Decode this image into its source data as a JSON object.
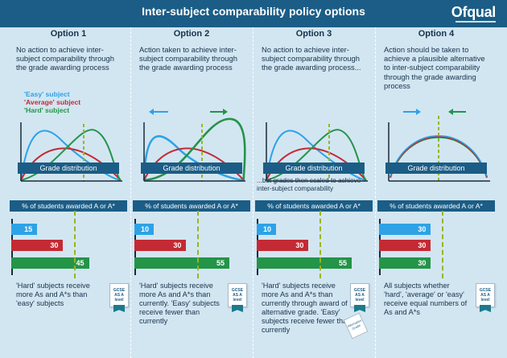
{
  "title": "Inter-subject comparability policy options",
  "logo": "Ofqual",
  "colors": {
    "easy": "#2ea2e6",
    "average": "#c42a33",
    "hard": "#239448",
    "threshold": "#9ab51f",
    "header": "#1b5d86"
  },
  "legend": {
    "easy": "'Easy' subject",
    "average": "'Average' subject",
    "hard": "'Hard' subject"
  },
  "options": [
    {
      "title": "Option 1",
      "desc": "No action to achieve inter-subject comparability through the grade awarding process",
      "dist_label": "Grade distribution",
      "pct_label": "% of students awarded A or A*",
      "bars": {
        "easy": 15,
        "average": 30,
        "hard": 45
      },
      "note": "'Hard' subjects receive more As and A*s than 'easy' subjects",
      "cert": "GCSE AS A level"
    },
    {
      "title": "Option 2",
      "desc": "Action taken to achieve inter-subject comparability through the grade awarding process",
      "dist_label": "Grade distribution",
      "pct_label": "% of students awarded A or A*",
      "bars": {
        "easy": 10,
        "average": 30,
        "hard": 55
      },
      "note": "'Hard' subjects receive more As and A*s than currently. 'Easy' subjects receive fewer than currently",
      "cert": "GCSE AS A level"
    },
    {
      "title": "Option 3",
      "desc": "No action to achieve inter-subject comparability through the grade awarding process...",
      "dist_label": "Grade distribution",
      "scaled_note": "...but grades then scaled to achieve inter-subject comparability",
      "pct_label": "% of students awarded A or A*",
      "bars": {
        "easy": 10,
        "average": 30,
        "hard": 55
      },
      "note": "'Hard' subjects receive more As and A*s than currently through award of alternative grade. 'Easy' subjects receive fewer than currently",
      "cert": "GCSE AS A level",
      "cert2": "Alternative Grade"
    },
    {
      "title": "Option 4",
      "desc": "Action should be taken to achieve a plausible alternative to inter-subject comparability through the grade awarding process",
      "dist_label": "Grade distribution",
      "pct_label": "% of students awarded A or A*",
      "bars": {
        "easy": 30,
        "average": 30,
        "hard": 30
      },
      "note": "All subjects whether 'hard', 'average' or 'easy' receive equal numbers of As and A*s",
      "cert": "GCSE AS A level"
    }
  ]
}
